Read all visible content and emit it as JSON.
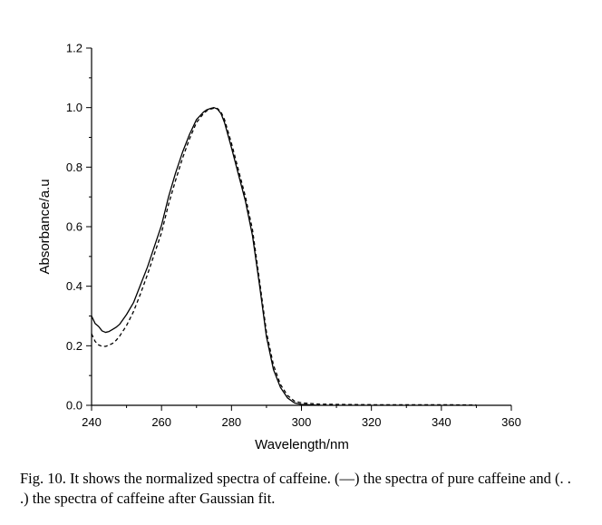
{
  "chart_data": {
    "type": "line",
    "xlabel": "Wavelength/nm",
    "ylabel": "Absorbance/a.u",
    "xlim": [
      240,
      360
    ],
    "ylim": [
      0.0,
      1.2
    ],
    "x_ticks": [
      "240",
      "260",
      "280",
      "300",
      "320",
      "340",
      "360"
    ],
    "y_ticks": [
      "0.0",
      "0.2",
      "0.4",
      "0.6",
      "0.8",
      "1.0",
      "1.2"
    ],
    "grid": false,
    "legend": "none",
    "series": [
      {
        "style": "solid",
        "color": "#000000",
        "x": [
          240,
          241,
          242,
          243,
          244,
          245,
          246,
          247,
          248,
          250,
          252,
          254,
          256,
          258,
          260,
          262,
          264,
          266,
          268,
          270,
          272,
          273,
          274,
          275,
          276,
          277,
          278,
          280,
          282,
          284,
          286,
          288,
          290,
          292,
          294,
          296,
          298,
          300,
          302,
          305
        ],
        "y": [
          0.3,
          0.275,
          0.265,
          0.25,
          0.245,
          0.248,
          0.255,
          0.262,
          0.272,
          0.305,
          0.345,
          0.405,
          0.465,
          0.535,
          0.605,
          0.7,
          0.78,
          0.85,
          0.91,
          0.96,
          0.985,
          0.993,
          0.997,
          1.0,
          0.995,
          0.98,
          0.95,
          0.865,
          0.775,
          0.685,
          0.57,
          0.405,
          0.23,
          0.12,
          0.06,
          0.025,
          0.008,
          0.003,
          0.002,
          0.0
        ]
      },
      {
        "style": "dashed",
        "color": "#000000",
        "x": [
          240,
          241,
          242,
          243,
          244,
          245,
          246,
          247,
          248,
          250,
          252,
          254,
          256,
          258,
          260,
          262,
          264,
          266,
          268,
          270,
          272,
          273,
          274,
          275,
          276,
          277,
          278,
          280,
          282,
          284,
          286,
          288,
          290,
          292,
          294,
          296,
          298,
          300,
          305,
          310,
          320,
          330,
          340,
          350
        ],
        "y": [
          0.24,
          0.215,
          0.203,
          0.198,
          0.198,
          0.202,
          0.208,
          0.218,
          0.232,
          0.268,
          0.315,
          0.375,
          0.44,
          0.51,
          0.58,
          0.675,
          0.755,
          0.83,
          0.895,
          0.95,
          0.98,
          0.99,
          0.995,
          0.998,
          0.997,
          0.985,
          0.96,
          0.88,
          0.79,
          0.7,
          0.59,
          0.42,
          0.245,
          0.135,
          0.07,
          0.033,
          0.014,
          0.008,
          0.004,
          0.003,
          0.002,
          0.002,
          0.002,
          0.001
        ]
      }
    ]
  },
  "caption": "Fig. 10. It shows the normalized spectra of caffeine. (—) the spectra of pure caffeine and (. . .) the spectra of caffeine after Gaussian fit."
}
